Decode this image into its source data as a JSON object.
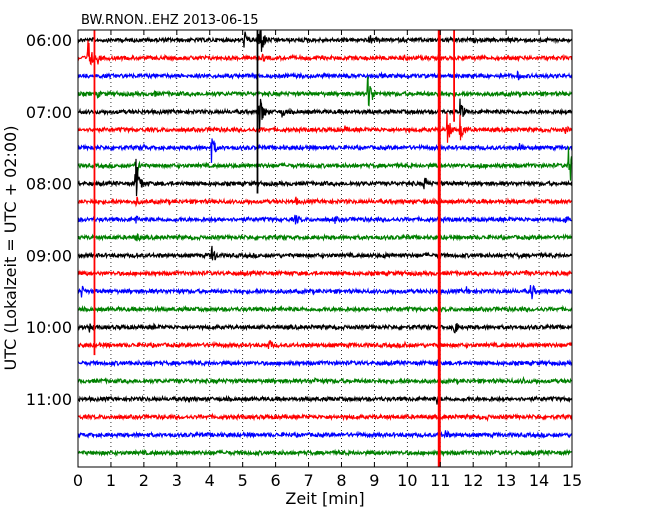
{
  "chart_data": {
    "type": "line",
    "title": "BW.RNON..EHZ 2013-06-15",
    "xlabel": "Zeit  [min]",
    "ylabel": "UTC (Lokalzeit = UTC + 02:00)",
    "xlim": [
      0,
      15
    ],
    "x_ticks": [
      0,
      1,
      2,
      3,
      4,
      5,
      6,
      7,
      8,
      9,
      10,
      11,
      12,
      13,
      14,
      15
    ],
    "y_tick_labels": [
      "06:00",
      "07:00",
      "08:00",
      "09:00",
      "10:00",
      "11:00"
    ],
    "y_tick_rows": [
      0,
      4,
      8,
      12,
      16,
      20
    ],
    "grid": "vertical dotted",
    "trace_colors": [
      "#000000",
      "#ff0000",
      "#0000ff",
      "#008000"
    ],
    "rows": 24,
    "traces": [
      {
        "label": "06:00",
        "color": "#000000",
        "events": [
          {
            "t": 5.05,
            "amp": 12
          },
          {
            "t": 5.5,
            "amp": 26
          },
          {
            "t": 8.85,
            "amp": 7
          }
        ]
      },
      {
        "label": "06:15",
        "color": "#ff0000",
        "events": [
          {
            "t": 0.3,
            "amp": 22
          },
          {
            "t": 0.6,
            "amp": 7
          },
          {
            "t": 5.6,
            "amp": 5
          },
          {
            "t": 9.9,
            "amp": 4
          }
        ]
      },
      {
        "label": "06:30",
        "color": "#0000ff",
        "events": [
          {
            "t": 13.35,
            "amp": 6
          },
          {
            "t": 9.2,
            "amp": 3
          }
        ]
      },
      {
        "label": "06:45",
        "color": "#008000",
        "events": [
          {
            "t": 0.6,
            "amp": 5
          },
          {
            "t": 2.3,
            "amp": 5
          },
          {
            "t": 8.8,
            "amp": 24
          }
        ]
      },
      {
        "label": "07:00",
        "color": "#000000",
        "events": [
          {
            "t": 5.5,
            "amp": 24
          },
          {
            "t": 6.2,
            "amp": 8
          },
          {
            "t": 11.6,
            "amp": 14
          }
        ]
      },
      {
        "label": "07:15",
        "color": "#ff0000",
        "events": [
          {
            "t": 4.1,
            "amp": 4
          },
          {
            "t": 8.1,
            "amp": 5
          },
          {
            "t": 11.2,
            "amp": 18
          },
          {
            "t": 11.6,
            "amp": 16
          },
          {
            "t": 14.8,
            "amp": 6
          }
        ]
      },
      {
        "label": "07:30",
        "color": "#0000ff",
        "events": [
          {
            "t": 2.0,
            "amp": 4
          },
          {
            "t": 4.05,
            "amp": 16
          },
          {
            "t": 13.4,
            "amp": 7
          }
        ]
      },
      {
        "label": "07:45",
        "color": "#008000",
        "events": [
          {
            "t": 1.75,
            "amp": 14
          },
          {
            "t": 12.2,
            "amp": 5
          },
          {
            "t": 14.9,
            "amp": 26
          }
        ]
      },
      {
        "label": "08:00",
        "color": "#000000",
        "events": [
          {
            "t": 1.75,
            "amp": 28
          },
          {
            "t": 10.5,
            "amp": 12
          }
        ]
      },
      {
        "label": "08:15",
        "color": "#ff0000",
        "events": [
          {
            "t": 1.75,
            "amp": 7
          },
          {
            "t": 6.6,
            "amp": 6
          },
          {
            "t": 10.5,
            "amp": 4
          }
        ]
      },
      {
        "label": "08:30",
        "color": "#0000ff",
        "events": [
          {
            "t": 1.75,
            "amp": 6
          },
          {
            "t": 6.6,
            "amp": 8
          },
          {
            "t": 7.8,
            "amp": 5
          },
          {
            "t": 14.8,
            "amp": 5
          }
        ]
      },
      {
        "label": "08:45",
        "color": "#008000",
        "events": [
          {
            "t": 1.75,
            "amp": 8
          }
        ]
      },
      {
        "label": "09:00",
        "color": "#000000",
        "events": [
          {
            "t": 1.8,
            "amp": 4
          },
          {
            "t": 4.05,
            "amp": 14
          },
          {
            "t": 9.3,
            "amp": 4
          },
          {
            "t": 13.4,
            "amp": 4
          }
        ]
      },
      {
        "label": "09:15",
        "color": "#ff0000",
        "events": [
          {
            "t": 4.5,
            "amp": 4
          },
          {
            "t": 13.6,
            "amp": 4
          }
        ]
      },
      {
        "label": "09:30",
        "color": "#0000ff",
        "events": [
          {
            "t": 0.1,
            "amp": 8
          },
          {
            "t": 11.8,
            "amp": 6
          },
          {
            "t": 13.75,
            "amp": 12
          }
        ]
      },
      {
        "label": "09:45",
        "color": "#008000",
        "events": [
          {
            "t": 11.5,
            "amp": 3
          }
        ]
      },
      {
        "label": "10:00",
        "color": "#000000",
        "events": [
          {
            "t": 0.35,
            "amp": 6
          },
          {
            "t": 2.3,
            "amp": 4
          },
          {
            "t": 11.4,
            "amp": 12
          }
        ]
      },
      {
        "label": "10:15",
        "color": "#ff0000",
        "events": [
          {
            "t": 5.8,
            "amp": 8
          },
          {
            "t": 9.9,
            "amp": 6
          }
        ]
      },
      {
        "label": "10:30",
        "color": "#0000ff",
        "events": [
          {
            "t": 10.9,
            "amp": 5
          }
        ]
      },
      {
        "label": "10:45",
        "color": "#008000",
        "events": [
          {
            "t": 7.2,
            "amp": 5
          },
          {
            "t": 13.5,
            "amp": 5
          }
        ]
      },
      {
        "label": "11:00",
        "color": "#000000",
        "events": [
          {
            "t": 3.3,
            "amp": 5
          },
          {
            "t": 10.9,
            "amp": 6
          }
        ]
      },
      {
        "label": "11:15",
        "color": "#ff0000",
        "events": [
          {
            "t": 12.4,
            "amp": 4
          }
        ]
      },
      {
        "label": "11:30",
        "color": "#0000ff",
        "events": [
          {
            "t": 11.15,
            "amp": 8
          }
        ]
      },
      {
        "label": "11:45",
        "color": "#008000",
        "events": [
          {
            "t": 4.1,
            "amp": 3
          }
        ]
      }
    ],
    "clipped_events": [
      {
        "t": 0.5,
        "row_start": 0,
        "row_end": 18,
        "color": "#ff0000"
      },
      {
        "t": 10.97,
        "row_start": 0,
        "row_end": 24,
        "color": "#ff0000"
      },
      {
        "t": 11.42,
        "row_start": 0,
        "row_end": 5,
        "color": "#ff0000"
      },
      {
        "t": 5.45,
        "row_start": 0,
        "row_end": 9,
        "color": "#000000"
      }
    ]
  }
}
